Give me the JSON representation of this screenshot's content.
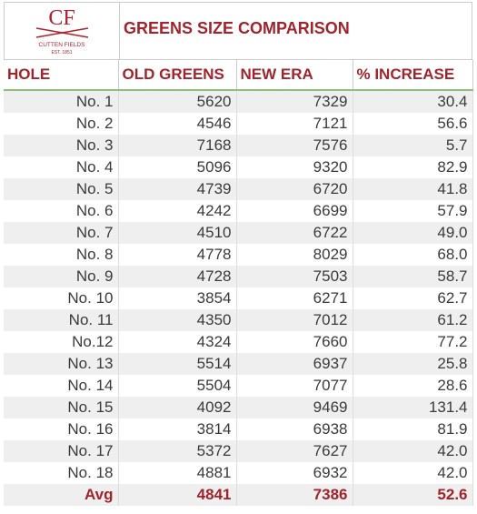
{
  "logo": {
    "monogram": "CF",
    "name": "CUTTEN FIELDS",
    "est": "EST. 1851"
  },
  "title": "GREENS SIZE COMPARISON",
  "table": {
    "columns": [
      "HOLE",
      "OLD GREENS",
      "NEW ERA",
      "% INCREASE"
    ],
    "rows": [
      [
        "No. 1",
        "5620",
        "7329",
        "30.4"
      ],
      [
        "No. 2",
        "4546",
        "7121",
        "56.6"
      ],
      [
        "No. 3",
        "7168",
        "7576",
        "5.7"
      ],
      [
        "No. 4",
        "5096",
        "9320",
        "82.9"
      ],
      [
        "No. 5",
        "4739",
        "6720",
        "41.8"
      ],
      [
        "No. 6",
        "4242",
        "6699",
        "57.9"
      ],
      [
        "No. 7",
        "4510",
        "6722",
        "49.0"
      ],
      [
        "No. 8",
        "4778",
        "8029",
        "68.0"
      ],
      [
        "No. 9",
        "4728",
        "7503",
        "58.7"
      ],
      [
        "No. 10",
        "3854",
        "6271",
        "62.7"
      ],
      [
        "No. 11",
        "4350",
        "7012",
        "61.2"
      ],
      [
        "No.12",
        "4324",
        "7660",
        "77.2"
      ],
      [
        "No. 13",
        "5514",
        "6937",
        "25.8"
      ],
      [
        "No. 14",
        "5504",
        "7077",
        "28.6"
      ],
      [
        "No. 15",
        "4092",
        "9469",
        "131.4"
      ],
      [
        "No. 16",
        "3814",
        "6938",
        "81.9"
      ],
      [
        "No. 17",
        "5372",
        "7627",
        "42.0"
      ],
      [
        "No. 18",
        "4881",
        "6932",
        "42.0"
      ]
    ],
    "footer": [
      "Avg",
      "4841",
      "7386",
      "52.6"
    ]
  }
}
